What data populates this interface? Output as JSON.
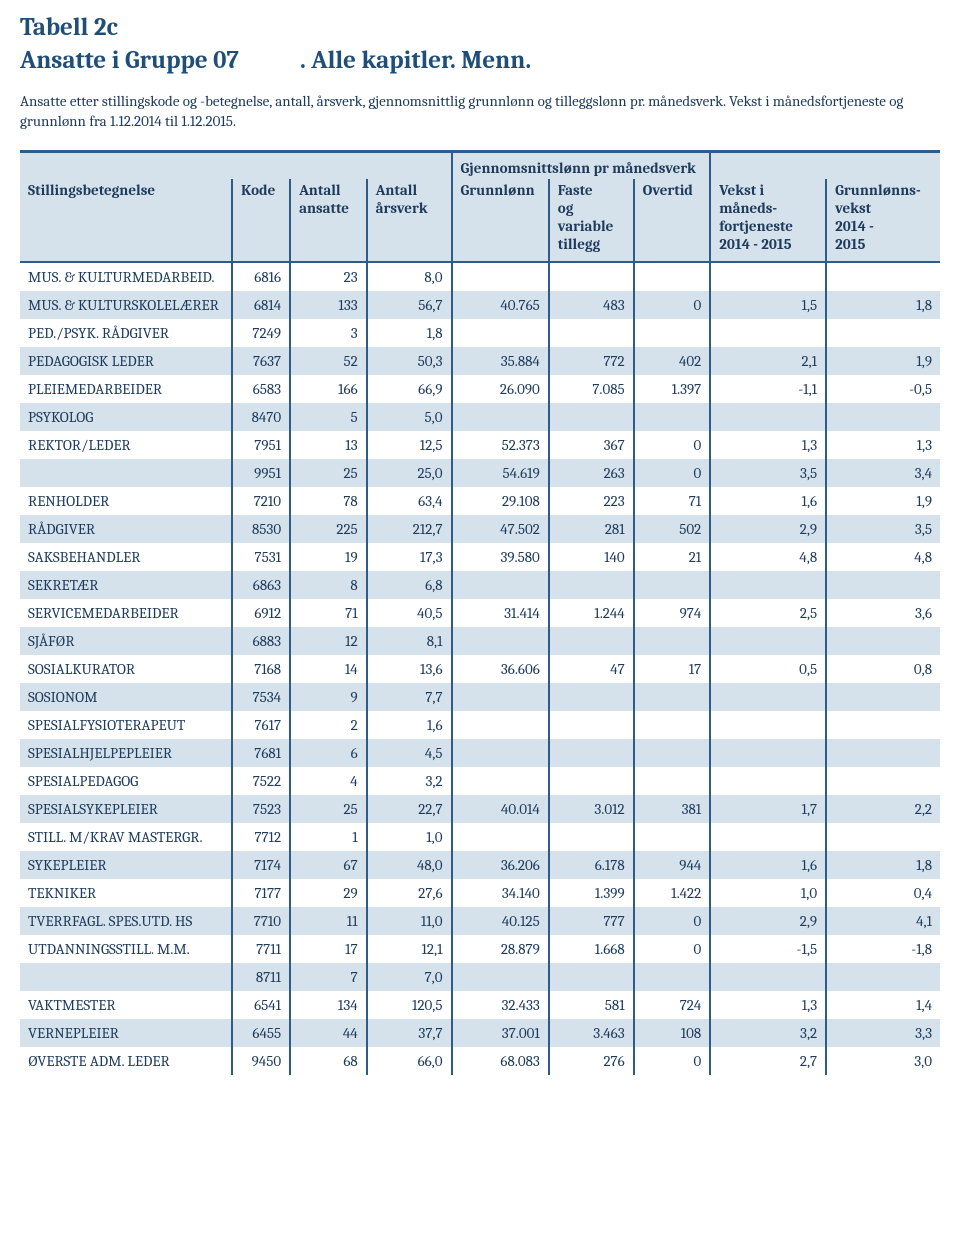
{
  "title": {
    "line1": "Tabell 2c",
    "group": "Ansatte i Gruppe 07",
    "suffix": ". Alle kapitler. Menn."
  },
  "description": "Ansatte etter stillingskode og -betegnelse, antall, årsverk, gjennomsnittlig grunnlønn og tilleggslønn pr. månedsverk. Vekst i månedsfortjeneste og grunnlønn fra 1.12.2014 til 1.12.2015.",
  "headers": {
    "super_group": "Gjennomsnittslønn pr månedsverk",
    "stilling": "Stillingsbetegnelse",
    "kode": "Kode",
    "ansatte_a": "Antall",
    "ansatte_b": "ansatte",
    "arsverk_a": "Antall",
    "arsverk_b": "årsverk",
    "grunn": "Grunnlønn",
    "faste_a": "Faste",
    "faste_b": "og",
    "faste_c": "variable",
    "faste_d": "tillegg",
    "overtid": "Overtid",
    "vekst1_a": "Vekst i",
    "vekst1_b": "måneds-",
    "vekst1_c": "fortjeneste",
    "vekst1_d": "2014 - 2015",
    "vekst2_a": "Grunnlønns-",
    "vekst2_b": "vekst",
    "vekst2_c": "2014 -",
    "vekst2_d": "2015"
  },
  "rows": [
    {
      "label": "MUS. & KULTURMEDARBEID.",
      "kode": "6816",
      "ansatte": "23",
      "arsverk": "8,0",
      "grunn": "",
      "faste": "",
      "overtid": "",
      "v1": "",
      "v2": ""
    },
    {
      "label": "MUS. & KULTURSKOLELÆRER",
      "kode": "6814",
      "ansatte": "133",
      "arsverk": "56,7",
      "grunn": "40.765",
      "faste": "483",
      "overtid": "0",
      "v1": "1,5",
      "v2": "1,8"
    },
    {
      "label": "PED./PSYK. RÅDGIVER",
      "kode": "7249",
      "ansatte": "3",
      "arsverk": "1,8",
      "grunn": "",
      "faste": "",
      "overtid": "",
      "v1": "",
      "v2": ""
    },
    {
      "label": "PEDAGOGISK LEDER",
      "kode": "7637",
      "ansatte": "52",
      "arsverk": "50,3",
      "grunn": "35.884",
      "faste": "772",
      "overtid": "402",
      "v1": "2,1",
      "v2": "1,9"
    },
    {
      "label": "PLEIEMEDARBEIDER",
      "kode": "6583",
      "ansatte": "166",
      "arsverk": "66,9",
      "grunn": "26.090",
      "faste": "7.085",
      "overtid": "1.397",
      "v1": "-1,1",
      "v2": "-0,5"
    },
    {
      "label": "PSYKOLOG",
      "kode": "8470",
      "ansatte": "5",
      "arsverk": "5,0",
      "grunn": "",
      "faste": "",
      "overtid": "",
      "v1": "",
      "v2": ""
    },
    {
      "label": "REKTOR/LEDER",
      "kode": "7951",
      "ansatte": "13",
      "arsverk": "12,5",
      "grunn": "52.373",
      "faste": "367",
      "overtid": "0",
      "v1": "1,3",
      "v2": "1,3"
    },
    {
      "label": "",
      "kode": "9951",
      "ansatte": "25",
      "arsverk": "25,0",
      "grunn": "54.619",
      "faste": "263",
      "overtid": "0",
      "v1": "3,5",
      "v2": "3,4"
    },
    {
      "label": "RENHOLDER",
      "kode": "7210",
      "ansatte": "78",
      "arsverk": "63,4",
      "grunn": "29.108",
      "faste": "223",
      "overtid": "71",
      "v1": "1,6",
      "v2": "1,9"
    },
    {
      "label": "RÅDGIVER",
      "kode": "8530",
      "ansatte": "225",
      "arsverk": "212,7",
      "grunn": "47.502",
      "faste": "281",
      "overtid": "502",
      "v1": "2,9",
      "v2": "3,5"
    },
    {
      "label": "SAKSBEHANDLER",
      "kode": "7531",
      "ansatte": "19",
      "arsverk": "17,3",
      "grunn": "39.580",
      "faste": "140",
      "overtid": "21",
      "v1": "4,8",
      "v2": "4,8"
    },
    {
      "label": "SEKRETÆR",
      "kode": "6863",
      "ansatte": "8",
      "arsverk": "6,8",
      "grunn": "",
      "faste": "",
      "overtid": "",
      "v1": "",
      "v2": ""
    },
    {
      "label": "SERVICEMEDARBEIDER",
      "kode": "6912",
      "ansatte": "71",
      "arsverk": "40,5",
      "grunn": "31.414",
      "faste": "1.244",
      "overtid": "974",
      "v1": "2,5",
      "v2": "3,6"
    },
    {
      "label": "SJÅFØR",
      "kode": "6883",
      "ansatte": "12",
      "arsverk": "8,1",
      "grunn": "",
      "faste": "",
      "overtid": "",
      "v1": "",
      "v2": ""
    },
    {
      "label": "SOSIALKURATOR",
      "kode": "7168",
      "ansatte": "14",
      "arsverk": "13,6",
      "grunn": "36.606",
      "faste": "47",
      "overtid": "17",
      "v1": "0,5",
      "v2": "0,8"
    },
    {
      "label": "SOSIONOM",
      "kode": "7534",
      "ansatte": "9",
      "arsverk": "7,7",
      "grunn": "",
      "faste": "",
      "overtid": "",
      "v1": "",
      "v2": ""
    },
    {
      "label": "SPESIALFYSIOTERAPEUT",
      "kode": "7617",
      "ansatte": "2",
      "arsverk": "1,6",
      "grunn": "",
      "faste": "",
      "overtid": "",
      "v1": "",
      "v2": ""
    },
    {
      "label": "SPESIALHJELPEPLEIER",
      "kode": "7681",
      "ansatte": "6",
      "arsverk": "4,5",
      "grunn": "",
      "faste": "",
      "overtid": "",
      "v1": "",
      "v2": ""
    },
    {
      "label": "SPESIALPEDAGOG",
      "kode": "7522",
      "ansatte": "4",
      "arsverk": "3,2",
      "grunn": "",
      "faste": "",
      "overtid": "",
      "v1": "",
      "v2": ""
    },
    {
      "label": "SPESIALSYKEPLEIER",
      "kode": "7523",
      "ansatte": "25",
      "arsverk": "22,7",
      "grunn": "40.014",
      "faste": "3.012",
      "overtid": "381",
      "v1": "1,7",
      "v2": "2,2"
    },
    {
      "label": "STILL. M/KRAV MASTERGR.",
      "kode": "7712",
      "ansatte": "1",
      "arsverk": "1,0",
      "grunn": "",
      "faste": "",
      "overtid": "",
      "v1": "",
      "v2": ""
    },
    {
      "label": "SYKEPLEIER",
      "kode": "7174",
      "ansatte": "67",
      "arsverk": "48,0",
      "grunn": "36.206",
      "faste": "6.178",
      "overtid": "944",
      "v1": "1,6",
      "v2": "1,8"
    },
    {
      "label": "TEKNIKER",
      "kode": "7177",
      "ansatte": "29",
      "arsverk": "27,6",
      "grunn": "34.140",
      "faste": "1.399",
      "overtid": "1.422",
      "v1": "1,0",
      "v2": "0,4"
    },
    {
      "label": "TVERRFAGL. SPES.UTD. HS",
      "kode": "7710",
      "ansatte": "11",
      "arsverk": "11,0",
      "grunn": "40.125",
      "faste": "777",
      "overtid": "0",
      "v1": "2,9",
      "v2": "4,1"
    },
    {
      "label": "UTDANNINGSSTILL. M.M.",
      "kode": "7711",
      "ansatte": "17",
      "arsverk": "12,1",
      "grunn": "28.879",
      "faste": "1.668",
      "overtid": "0",
      "v1": "-1,5",
      "v2": "-1,8"
    },
    {
      "label": "",
      "kode": "8711",
      "ansatte": "7",
      "arsverk": "7,0",
      "grunn": "",
      "faste": "",
      "overtid": "",
      "v1": "",
      "v2": ""
    },
    {
      "label": "VAKTMESTER",
      "kode": "6541",
      "ansatte": "134",
      "arsverk": "120,5",
      "grunn": "32.433",
      "faste": "581",
      "overtid": "724",
      "v1": "1,3",
      "v2": "1,4"
    },
    {
      "label": "VERNEPLEIER",
      "kode": "6455",
      "ansatte": "44",
      "arsverk": "37,7",
      "grunn": "37.001",
      "faste": "3.463",
      "overtid": "108",
      "v1": "3,2",
      "v2": "3,3"
    },
    {
      "label": "ØVERSTE ADM. LEDER",
      "kode": "9450",
      "ansatte": "68",
      "arsverk": "66,0",
      "grunn": "68.083",
      "faste": "276",
      "overtid": "0",
      "v1": "2,7",
      "v2": "3,0"
    }
  ]
}
